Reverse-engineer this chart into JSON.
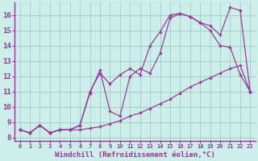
{
  "background_color": "#cceee8",
  "grid_color": "#aacccc",
  "line_color": "#993399",
  "marker": "+",
  "xlabel": "Windchill (Refroidissement éolien,°C)",
  "ylabel_ticks": [
    8,
    9,
    10,
    11,
    12,
    13,
    14,
    15,
    16
  ],
  "xlabel_ticks": [
    0,
    1,
    2,
    3,
    4,
    5,
    6,
    7,
    8,
    9,
    10,
    11,
    12,
    13,
    14,
    15,
    16,
    17,
    18,
    19,
    20,
    21,
    22,
    23
  ],
  "ylim": [
    7.8,
    16.8
  ],
  "xlim": [
    -0.5,
    23.5
  ],
  "line1_x": [
    0,
    1,
    2,
    3,
    4,
    5,
    6,
    7,
    8,
    9,
    10,
    11,
    12,
    13,
    14,
    15,
    16,
    17,
    18,
    19,
    20,
    21,
    22,
    23
  ],
  "line1_y": [
    8.5,
    8.3,
    8.8,
    8.3,
    8.5,
    8.5,
    8.5,
    8.6,
    8.7,
    8.9,
    9.1,
    9.4,
    9.6,
    9.9,
    10.2,
    10.5,
    10.9,
    11.3,
    11.6,
    11.9,
    12.2,
    12.5,
    12.7,
    11.0
  ],
  "line2_x": [
    0,
    1,
    2,
    3,
    4,
    5,
    6,
    7,
    8,
    9,
    10,
    11,
    12,
    13,
    14,
    15,
    16,
    17,
    18,
    19,
    20,
    21,
    22,
    23
  ],
  "line2_y": [
    8.5,
    8.3,
    8.8,
    8.3,
    8.5,
    8.5,
    8.8,
    11.0,
    12.2,
    11.5,
    12.1,
    12.5,
    12.1,
    14.0,
    14.9,
    16.0,
    16.1,
    15.9,
    15.5,
    15.0,
    14.0,
    13.9,
    12.1,
    11.0
  ],
  "line3_x": [
    0,
    1,
    2,
    3,
    4,
    5,
    6,
    7,
    8,
    9,
    10,
    11,
    12,
    13,
    14,
    15,
    16,
    17,
    18,
    19,
    20,
    21,
    22,
    23
  ],
  "line3_y": [
    8.5,
    8.3,
    8.8,
    8.3,
    8.5,
    8.5,
    8.8,
    10.9,
    12.4,
    9.7,
    9.4,
    12.0,
    12.5,
    12.2,
    13.5,
    15.8,
    16.1,
    15.9,
    15.5,
    15.3,
    14.7,
    16.5,
    16.3,
    11.0
  ],
  "font_size_xlabel": 6.5,
  "font_size_ytick": 6.5,
  "font_size_xtick": 5.0
}
